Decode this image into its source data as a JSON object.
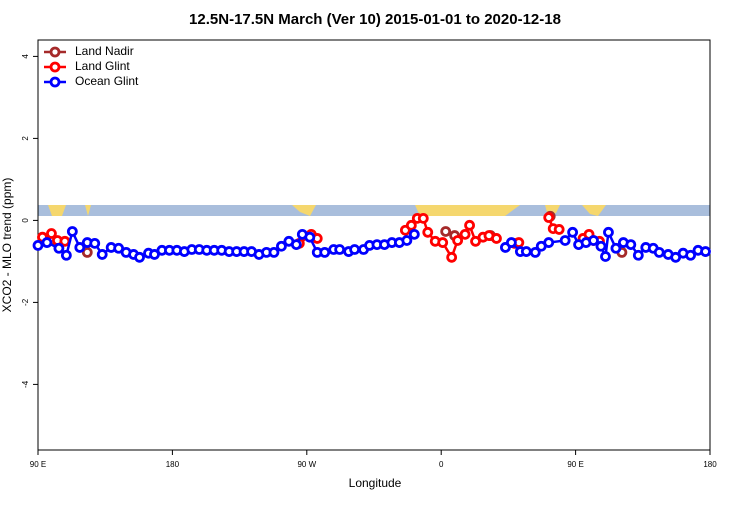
{
  "chart_data": {
    "type": "line",
    "title": "12.5N-17.5N March (Ver 10)   2015-01-01 to 2020-12-18",
    "x_label": "Longitude",
    "y_label": "XCO2 - MLO trend (ppm)",
    "xlim": [
      90,
      540
    ],
    "ylim": [
      -5.6,
      4.4
    ],
    "xticks": [
      {
        "value": 90,
        "label": "90 E"
      },
      180,
      {
        "value": 270,
        "label": "90 W"
      },
      {
        "value": 360,
        "label": "0"
      },
      {
        "value": 450,
        "label": "90 E"
      },
      {
        "value": 540,
        "label": "180"
      }
    ],
    "yticks": [
      4,
      2,
      0,
      -2,
      -4
    ],
    "legend": "top-left",
    "series": [
      {
        "name": "Land Nadir",
        "color": "#a52a2a",
        "x": [
          100,
          null,
          123,
          null,
          363,
          369,
          null,
          393,
          null,
          433,
          null,
          481
        ],
        "values": [
          -0.49,
          null,
          -0.78,
          null,
          -0.27,
          -0.37,
          null,
          -0.37,
          null,
          0.1,
          null,
          -0.78
        ]
      },
      {
        "name": "Land Glint",
        "color": "#ff0000",
        "x": [
          93,
          99,
          103,
          108,
          null,
          265,
          273,
          277,
          null,
          336,
          340,
          344,
          348,
          351,
          356,
          361,
          367,
          371,
          376,
          379,
          383,
          388,
          392,
          397,
          null,
          409,
          412,
          null,
          432,
          435,
          439,
          null,
          455,
          459,
          462,
          466
        ],
        "values": [
          -0.41,
          -0.32,
          -0.49,
          -0.51,
          null,
          -0.56,
          -0.34,
          -0.44,
          null,
          -0.24,
          -0.12,
          0.05,
          0.05,
          -0.29,
          -0.51,
          -0.54,
          -0.9,
          -0.49,
          -0.34,
          -0.12,
          -0.51,
          -0.41,
          -0.37,
          -0.44,
          null,
          -0.56,
          -0.54,
          null,
          0.07,
          -0.2,
          -0.22,
          null,
          -0.44,
          -0.34,
          -0.49,
          -0.51
        ]
      },
      {
        "name": "Ocean Glint",
        "color": "#0000ff",
        "x": [
          90,
          96,
          104,
          109,
          113,
          118,
          123,
          128,
          133,
          139,
          144,
          149,
          154,
          158,
          164,
          168,
          173,
          178,
          183,
          188,
          193,
          198,
          203,
          208,
          213,
          218,
          223,
          228,
          233,
          238,
          243,
          248,
          253,
          258,
          263,
          267,
          272,
          277,
          282,
          288,
          292,
          298,
          302,
          308,
          312,
          317,
          322,
          327,
          332,
          337,
          342,
          null,
          403,
          407,
          413,
          417,
          423,
          427,
          432,
          443,
          448,
          452,
          457,
          462,
          467,
          470,
          472,
          477,
          482,
          487,
          492,
          497,
          502,
          506,
          512,
          517,
          522,
          527,
          532,
          537
        ],
        "values": [
          -0.61,
          -0.54,
          -0.68,
          -0.85,
          -0.27,
          -0.66,
          -0.54,
          -0.56,
          -0.83,
          -0.66,
          -0.68,
          -0.78,
          -0.83,
          -0.9,
          -0.8,
          -0.83,
          -0.73,
          -0.73,
          -0.73,
          -0.76,
          -0.71,
          -0.71,
          -0.73,
          -0.73,
          -0.73,
          -0.76,
          -0.76,
          -0.76,
          -0.76,
          -0.83,
          -0.78,
          -0.78,
          -0.63,
          -0.51,
          -0.59,
          -0.34,
          -0.41,
          -0.78,
          -0.78,
          -0.71,
          -0.71,
          -0.76,
          -0.71,
          -0.71,
          -0.61,
          -0.59,
          -0.59,
          -0.54,
          -0.54,
          -0.49,
          -0.34,
          null,
          -0.66,
          -0.54,
          -0.76,
          -0.76,
          -0.78,
          -0.63,
          -0.54,
          -0.49,
          -0.29,
          -0.59,
          -0.54,
          -0.49,
          -0.63,
          -0.88,
          -0.29,
          -0.68,
          -0.54,
          -0.59,
          -0.85,
          -0.66,
          -0.68,
          -0.78,
          -0.83,
          -0.9,
          -0.8,
          -0.85,
          -0.73,
          -0.76
        ]
      }
    ]
  }
}
